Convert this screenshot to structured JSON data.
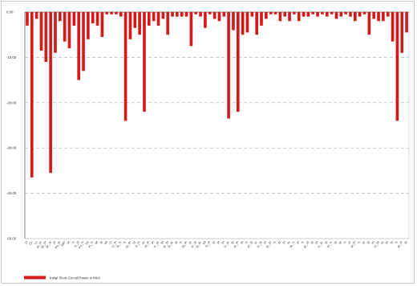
{
  "chart_data": {
    "type": "bar",
    "title": "",
    "xlabel": "",
    "ylabel": "",
    "ylim": [
      -50,
      0
    ],
    "yticks": [
      0,
      -10,
      -20,
      -30,
      -40,
      -50
    ],
    "ytick_labels": [
      "0.00",
      "-10.00",
      "-20.00",
      "-30.00",
      "-40.00",
      "-50.00"
    ],
    "grid": "horizontal dashed",
    "legend_position": "bottom-left",
    "series": [
      {
        "name": "Initial Short-Circuit Power in MVA",
        "color": "#d41919",
        "values": [
          -3.0,
          -36.5,
          -1.5,
          -8.5,
          -11.0,
          -35.5,
          -9.0,
          -2.0,
          -6.5,
          -8.0,
          -3.0,
          -15.0,
          -13.0,
          -6.0,
          -2.5,
          -3.0,
          -5.5,
          -0.5,
          -0.5,
          -0.5,
          -1.0,
          -24.0,
          -6.0,
          -3.5,
          -5.0,
          -22.0,
          -3.0,
          -2.0,
          -3.0,
          -1.5,
          -5.0,
          -1.0,
          -1.0,
          -1.0,
          -1.0,
          -7.5,
          -0.5,
          -1.0,
          -3.5,
          -0.5,
          -1.5,
          -2.0,
          -1.0,
          -23.5,
          -4.0,
          -22.0,
          -5.0,
          -4.5,
          -1.0,
          -5.0,
          -3.0,
          -1.5,
          -0.5,
          -0.5,
          -2.0,
          -1.0,
          -2.0,
          -0.5,
          -2.0,
          -1.0,
          -1.0,
          -0.5,
          -1.0,
          -0.5,
          -1.0,
          -0.5,
          -1.5,
          -1.0,
          -0.5,
          -1.0,
          -2.0,
          -1.0,
          -0.5,
          -5.0,
          -1.5,
          -2.0,
          -2.0,
          -1.0,
          -6.5,
          -24.0,
          -9.0,
          -4.5
        ]
      }
    ],
    "categories": [
      "Cl",
      "Ch",
      "Lu",
      "Ar_Pr",
      "Br_Pr",
      "Br_Xt",
      "Pl",
      "Ro_Pl",
      "StKl",
      "Pt",
      "Tr",
      "Tr_Pl",
      "Pa_Tr",
      "Pa",
      "Pl_Tr",
      "Mt",
      "St",
      "Mt",
      "Cl",
      "Cl_Pl",
      "St_Tr",
      "Tr",
      "St_Ar",
      "St",
      "Tr_Pl",
      "Ar",
      "St_Pl",
      "Pl",
      "Tr_Ar",
      "St",
      "Ar_St",
      "Pl_Ar",
      "St",
      "Tr",
      "St_Pl",
      "Pl",
      "Tr_St",
      "St_Ar",
      "Mt",
      "Tr_Pl",
      "St",
      "Pl",
      "Pl",
      "Tr_Ar",
      "St",
      "Ar_Pl",
      "St",
      "Tr",
      "Pl_St",
      "Ar",
      "Tr_St",
      "Pl",
      "St_Ar",
      "Tr",
      "St",
      "Pl",
      "Ar",
      "St_Tr",
      "Pl",
      "Tr",
      "Ar_St",
      "St",
      "Pl",
      "Tr_Ar",
      "St",
      "Pl_Tr",
      "St",
      "Ar",
      "Tr",
      "Pl",
      "St_Pl",
      "Tr",
      "Ar",
      "St",
      "Pl",
      "Tr_St",
      "Ar",
      "Pl",
      "St",
      "Tr",
      "Ar_Pl",
      "St"
    ]
  }
}
